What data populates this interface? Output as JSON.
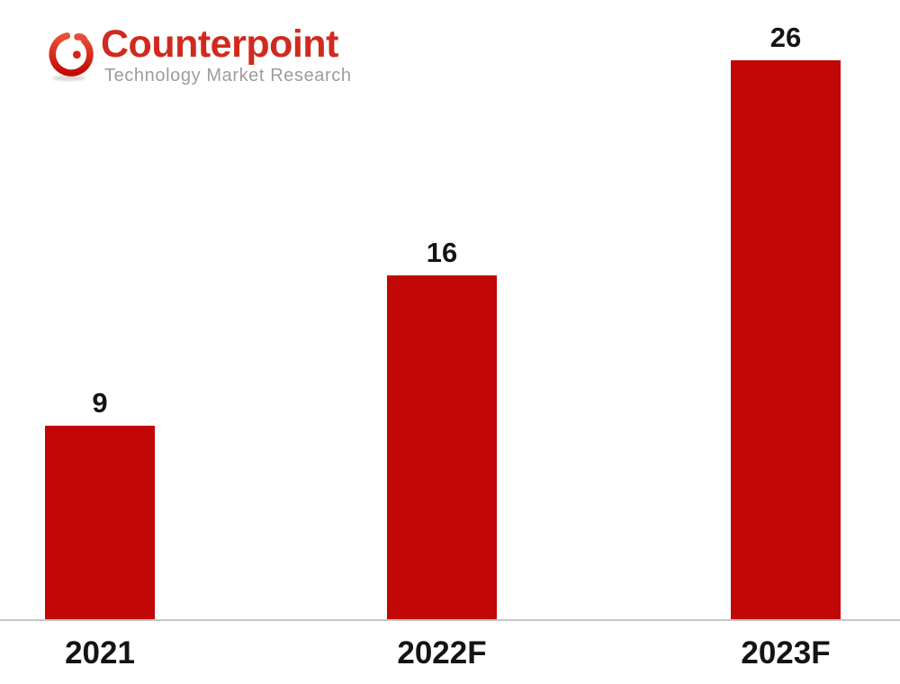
{
  "logo": {
    "brand": "Counterpoint",
    "tagline": "Technology Market Research"
  },
  "chart_data": {
    "type": "bar",
    "categories": [
      "2021",
      "2022F",
      "2023F"
    ],
    "values": [
      9,
      16,
      26
    ],
    "series_color": "#C20707",
    "title": "",
    "xlabel": "",
    "ylabel": "",
    "ylim": [
      0,
      27
    ],
    "grid": false,
    "legend": "none",
    "data_labels": true
  },
  "colors": {
    "background": "#FFFFFF",
    "bar_red": "#C20707",
    "logo_red": "#D2291E",
    "logo_dot_red": "#D32415",
    "tagline_gray": "#9C9C9C",
    "axis_line_gray": "#C6C6C6",
    "label_black": "#141414"
  }
}
